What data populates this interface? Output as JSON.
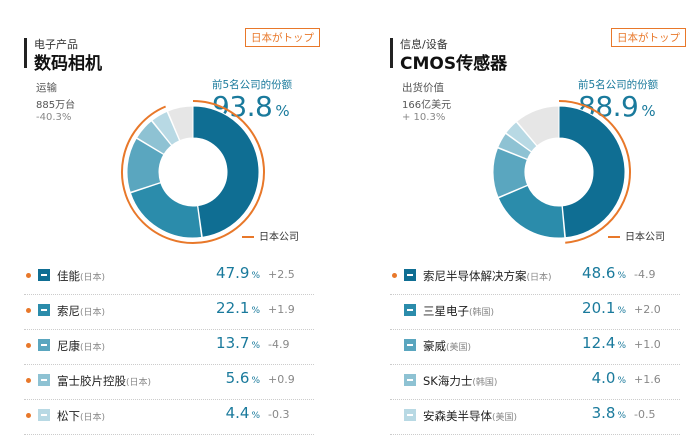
{
  "colors": {
    "accent": "#e8782a",
    "series": [
      "#0f6e93",
      "#2b8cab",
      "#5aa6bf",
      "#8ec2d3",
      "#b8d9e4"
    ],
    "other": "#e6e6e6"
  },
  "chart_data": [
    {
      "type": "pie",
      "category": "电子产品",
      "title": "数码相机",
      "badge": "日本がトップ",
      "metric_label": "运输",
      "metric_value": "885万台",
      "metric_change": "-40.3%",
      "top5_label": "前5名公司的份额",
      "top5_share": "93.8",
      "top5_unit": "%",
      "legend_japan": "日本公司",
      "companies": [
        {
          "name": "佳能",
          "country": "(日本)",
          "share": 47.9,
          "share_text": "47.9",
          "change": "+2.5",
          "japanese": true
        },
        {
          "name": "索尼",
          "country": "(日本)",
          "share": 22.1,
          "share_text": "22.1",
          "change": "+1.9",
          "japanese": true
        },
        {
          "name": "尼康",
          "country": "(日本)",
          "share": 13.7,
          "share_text": "13.7",
          "change": "-4.9",
          "japanese": true
        },
        {
          "name": "富士胶片控股",
          "country": "(日本)",
          "share": 5.6,
          "share_text": "5.6",
          "change": "+0.9",
          "japanese": true
        },
        {
          "name": "松下",
          "country": "(日本)",
          "share": 4.4,
          "share_text": "4.4",
          "change": "-0.3",
          "japanese": true
        }
      ]
    },
    {
      "type": "pie",
      "category": "信息/设备",
      "title": "CMOS传感器",
      "badge": "日本がトップ",
      "metric_label": "出货价值",
      "metric_value": "166亿美元",
      "metric_change": "+ 10.3%",
      "top5_label": "前5名公司的份额",
      "top5_share": "88.9",
      "top5_unit": "%",
      "legend_japan": "日本公司",
      "companies": [
        {
          "name": "索尼半导体解决方案",
          "country": "(日本)",
          "share": 48.6,
          "share_text": "48.6",
          "change": "-4.9",
          "japanese": true
        },
        {
          "name": "三星电子",
          "country": "(韩国)",
          "share": 20.1,
          "share_text": "20.1",
          "change": "+2.0",
          "japanese": false
        },
        {
          "name": "豪威",
          "country": "(美国)",
          "share": 12.4,
          "share_text": "12.4",
          "change": "+1.0",
          "japanese": false
        },
        {
          "name": "SK海力士",
          "country": "(韩国)",
          "share": 4.0,
          "share_text": "4.0",
          "change": "+1.6",
          "japanese": false
        },
        {
          "name": "安森美半导体",
          "country": "(美国)",
          "share": 3.8,
          "share_text": "3.8",
          "change": "-0.5",
          "japanese": false
        }
      ]
    }
  ],
  "units": {
    "percent": "%"
  }
}
